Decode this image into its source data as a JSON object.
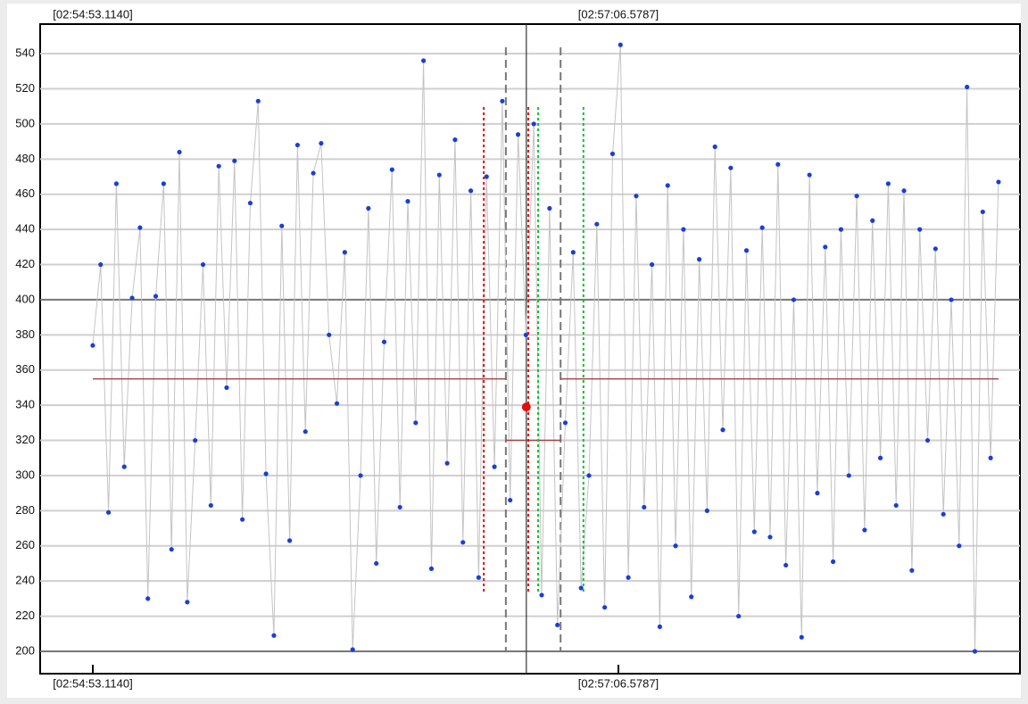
{
  "chart_data": {
    "type": "line",
    "xlim": [
      10479.745,
      10728.55
    ],
    "ylim": [
      187.3,
      556.8
    ],
    "xticks": [
      {
        "value": 10493.114,
        "label": "[02:54:53.1140]"
      },
      {
        "value": 10626.5787,
        "label": "[02:57:06.5787]"
      }
    ],
    "yticks": [
      200,
      220,
      240,
      260,
      280,
      300,
      320,
      340,
      360,
      380,
      400,
      420,
      440,
      460,
      480,
      500,
      520,
      540
    ],
    "major_grid": [
      200,
      400
    ],
    "grid": true,
    "series": [
      {
        "color": "#1a3fd6",
        "x": [
          10493.1,
          10495.1,
          10497.1,
          10499.1,
          10501.1,
          10503.1,
          10505.1,
          10507.1,
          10509.1,
          10511.1,
          10513.1,
          10515.1,
          10517.1,
          10519.1,
          10521.1,
          10523.1,
          10525.1,
          10527.1,
          10529.1,
          10531.1,
          10533.1,
          10535.1,
          10537.1,
          10539.1,
          10541.1,
          10543.1,
          10545.1,
          10547.1,
          10549.1,
          10551.1,
          10553.1,
          10555.1,
          10557.1,
          10559.1,
          10561.1,
          10563.1,
          10565.1,
          10567.1,
          10569.1,
          10571.1,
          10573.1,
          10575.1,
          10577.1,
          10579.1,
          10581.1,
          10583.1,
          10585.1,
          10587.1,
          10589.1,
          10591.1,
          10593.1,
          10595.1,
          10597.1,
          10599.1,
          10601.1,
          10603.1,
          10605.1,
          10607.1,
          10609.1,
          10611.1,
          10613.1,
          10615.1,
          10617.1,
          10619.1,
          10621.1,
          10623.1,
          10625.1,
          10627.1,
          10629.1,
          10631.1,
          10633.1,
          10635.1,
          10637.1,
          10639.1,
          10641.1,
          10643.1,
          10645.1,
          10647.1,
          10649.1,
          10651.1,
          10653.1,
          10655.1,
          10657.1,
          10659.1,
          10661.1,
          10663.1,
          10665.1,
          10667.1,
          10669.1,
          10671.1,
          10673.1,
          10675.1,
          10677.1,
          10679.1,
          10681.1,
          10683.1,
          10685.1,
          10687.1,
          10689.1,
          10691.1,
          10693.1,
          10695.1,
          10697.1,
          10699.1,
          10701.1,
          10703.1,
          10705.1,
          10707.1,
          10709.1,
          10711.1,
          10713.1,
          10715.1,
          10717.1,
          10719.1,
          10721.1,
          10723.1
        ],
        "values": [
          374,
          420,
          279,
          466,
          305,
          401,
          441,
          230,
          402,
          466,
          258,
          484,
          228,
          320,
          420,
          283,
          476,
          350,
          479,
          275,
          455,
          513,
          301,
          209,
          442,
          263,
          488,
          325,
          472,
          489,
          380,
          341,
          427,
          201,
          300,
          452,
          250,
          376,
          474,
          282,
          456,
          330,
          536,
          247,
          471,
          307,
          491,
          262,
          462,
          242,
          470,
          305,
          513,
          286,
          494,
          380,
          500,
          232,
          452,
          215,
          330,
          427,
          236,
          300,
          443,
          225,
          483,
          545,
          242,
          459,
          282,
          420,
          214,
          465,
          260,
          440,
          231,
          423,
          280,
          487,
          326,
          475,
          220,
          428,
          268,
          441,
          265,
          477,
          249,
          400,
          208,
          471,
          290,
          430,
          251,
          440,
          300,
          459,
          269,
          445,
          310,
          466,
          283,
          462,
          246,
          440,
          320,
          429,
          278,
          400,
          260,
          521,
          200,
          450,
          310,
          467
        ]
      }
    ],
    "mean_segments": [
      {
        "x0": 10493.1,
        "x1": 10598.0,
        "y": 355
      },
      {
        "x0": 10598.0,
        "x1": 10611.9,
        "y": 320
      },
      {
        "x0": 10611.9,
        "x1": 10723.1,
        "y": 355
      }
    ],
    "selection": [
      10598.0,
      10611.9
    ],
    "cursor": {
      "x": 10603.2,
      "y": 339
    },
    "red_markers": [
      10592.4,
      10603.7
    ],
    "green_markers": [
      10606.2,
      10617.7
    ]
  }
}
